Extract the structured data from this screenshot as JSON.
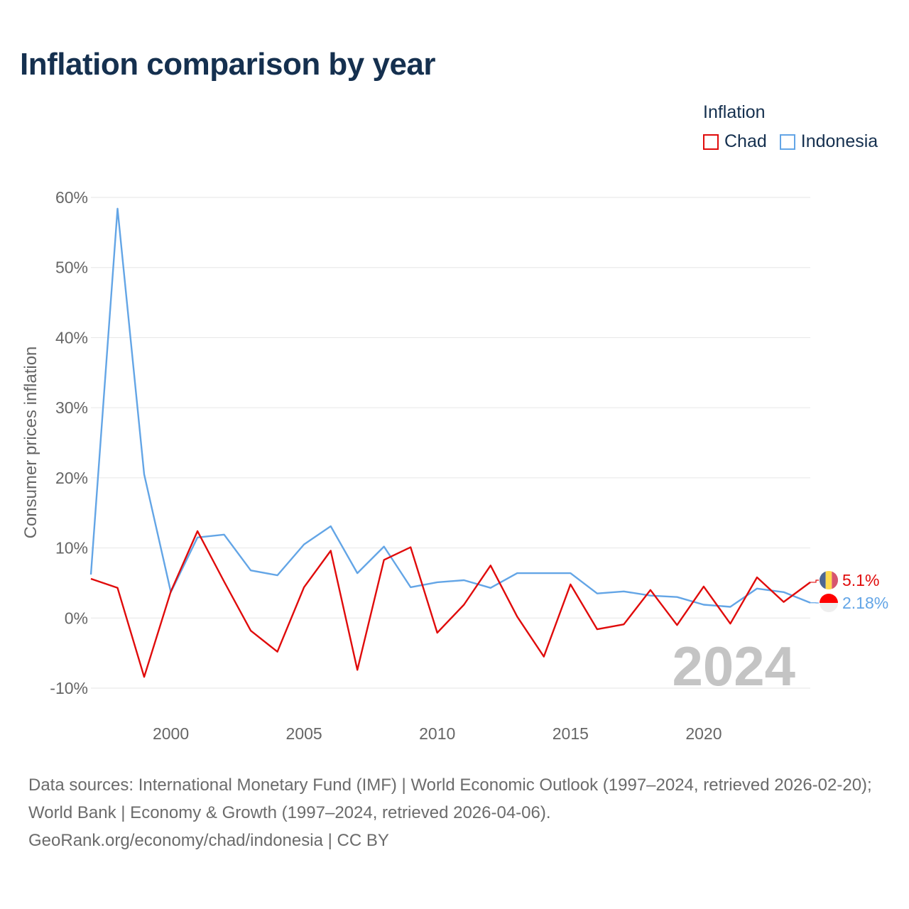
{
  "title": "Inflation comparison by year",
  "legend": {
    "title": "Inflation",
    "items": [
      {
        "label": "Chad",
        "color": "#e00b0b"
      },
      {
        "label": "Indonesia",
        "color": "#63a5e6"
      }
    ]
  },
  "chart_data": {
    "type": "line",
    "title": "Inflation comparison by year",
    "xlabel": "",
    "ylabel": "Consumer prices inflation",
    "xlim": [
      1997,
      2024
    ],
    "ylim": [
      -10,
      60
    ],
    "x_ticks": [
      2000,
      2005,
      2010,
      2015,
      2020
    ],
    "y_ticks": [
      -10,
      0,
      10,
      20,
      30,
      40,
      50,
      60
    ],
    "y_tick_labels": [
      "-10%",
      "0%",
      "10%",
      "20%",
      "30%",
      "40%",
      "50%",
      "60%"
    ],
    "x_tick_labels": [
      "2000",
      "2005",
      "2010",
      "2015",
      "2020"
    ],
    "grid": true,
    "legend_position": "top-right",
    "year_watermark": "2024",
    "x": [
      1997,
      1998,
      1999,
      2000,
      2001,
      2002,
      2003,
      2004,
      2005,
      2006,
      2007,
      2008,
      2009,
      2010,
      2011,
      2012,
      2013,
      2014,
      2015,
      2016,
      2017,
      2018,
      2019,
      2020,
      2021,
      2022,
      2023,
      2024
    ],
    "series": [
      {
        "name": "Chad",
        "color": "#e00b0b",
        "end_label": "5.1%",
        "values": [
          5.6,
          4.3,
          -8.4,
          3.8,
          12.4,
          5.2,
          -1.8,
          -4.8,
          4.4,
          9.6,
          -7.4,
          8.3,
          10.1,
          -2.1,
          1.9,
          7.5,
          0.2,
          -5.5,
          4.8,
          -1.6,
          -0.9,
          4.0,
          -1.0,
          4.5,
          -0.8,
          5.8,
          2.3,
          5.1
        ]
      },
      {
        "name": "Indonesia",
        "color": "#63a5e6",
        "end_label": "2.18%",
        "values": [
          6.2,
          58.4,
          20.5,
          3.7,
          11.5,
          11.9,
          6.8,
          6.1,
          10.5,
          13.1,
          6.4,
          10.2,
          4.4,
          5.1,
          5.4,
          4.3,
          6.4,
          6.4,
          6.4,
          3.5,
          3.8,
          3.2,
          3.0,
          1.9,
          1.6,
          4.2,
          3.7,
          2.18
        ]
      }
    ]
  },
  "sources": {
    "line1": "Data sources: International Monetary Fund (IMF) | World Economic Outlook (1997–2024, retrieved 2026-02-20); World Bank | Economy & Growth (1997–2024, retrieved 2026-04-06).",
    "line2": "GeoRank.org/economy/chad/indonesia | CC BY"
  }
}
